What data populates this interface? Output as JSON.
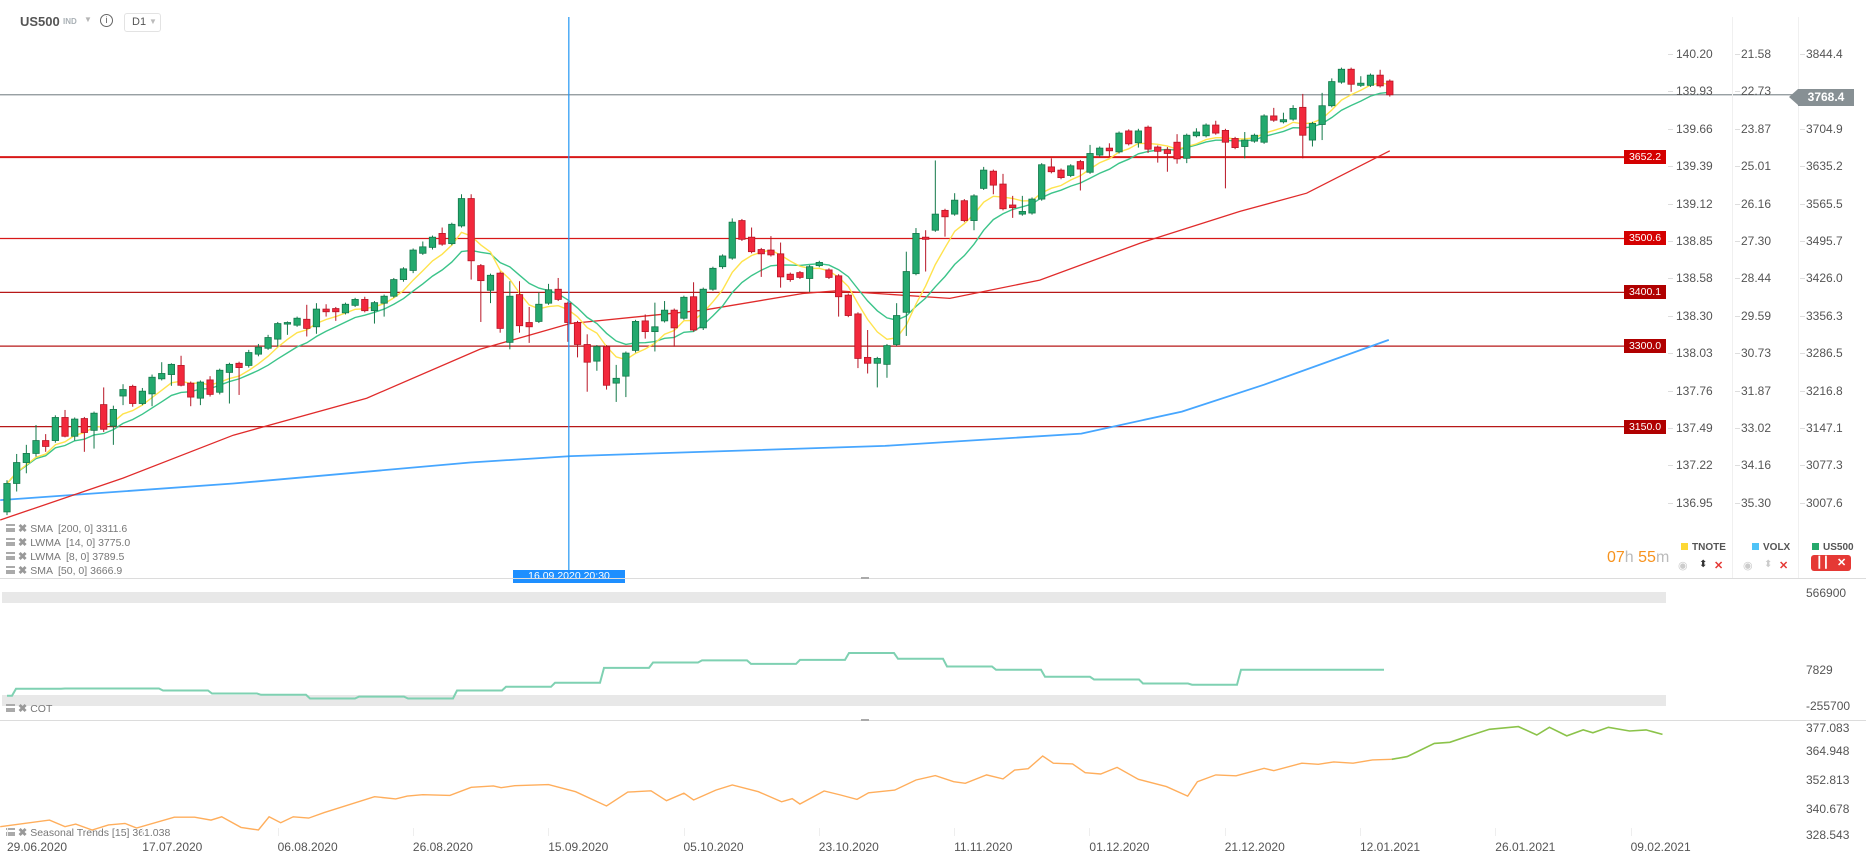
{
  "header": {
    "symbol": "US500",
    "type": "IND",
    "info_icon": "info-icon",
    "timeframe": "D1"
  },
  "axes": {
    "tnote": [
      "140.20",
      "139.93",
      "139.66",
      "139.39",
      "139.12",
      "138.85",
      "138.58",
      "138.30",
      "138.03",
      "137.76",
      "137.49",
      "137.22",
      "136.95"
    ],
    "volx": [
      "21.58",
      "22.73",
      "23.87",
      "25.01",
      "26.16",
      "27.30",
      "28.44",
      "29.59",
      "30.73",
      "31.87",
      "33.02",
      "34.16",
      "35.30"
    ],
    "us500": [
      "3844.4",
      "3768.4",
      "3704.9",
      "3635.2",
      "3565.5",
      "3495.7",
      "3426.0",
      "3356.3",
      "3286.5",
      "3216.8",
      "3147.1",
      "3077.3",
      "3007.6"
    ],
    "tnote_ghost_2": "139.93",
    "volx_ghost_2": "22.73"
  },
  "current_price": {
    "label": "3768.4",
    "value": 3768.4,
    "color": "#879094"
  },
  "levels": [
    {
      "label": "3652.2",
      "value": 3652.2,
      "color": "#d40000"
    },
    {
      "label": "3500.6",
      "value": 3500.6,
      "color": "#d40000"
    },
    {
      "label": "3400.1",
      "value": 3400.1,
      "color": "#b00000"
    },
    {
      "label": "3300.0",
      "value": 3300.0,
      "color": "#b00000"
    },
    {
      "label": "3150.0",
      "value": 3150.0,
      "color": "#b00000"
    }
  ],
  "indicators": [
    {
      "name": "SMA",
      "params": "[200,  0]",
      "value": "3311.6",
      "color": "#4aa8ff"
    },
    {
      "name": "LWMA",
      "params": "[14,  0]",
      "value": "3775.0",
      "color": "#3cc48a"
    },
    {
      "name": "LWMA",
      "params": "[8,  0]",
      "value": "3789.5",
      "color": "#ffe34d"
    },
    {
      "name": "SMA",
      "params": "[50,  0]",
      "value": "3666.9",
      "color": "#e02b2b"
    }
  ],
  "crosshair": {
    "label": "16.09.2020 20:30",
    "day_index": 58.1
  },
  "timer": {
    "hours": "07",
    "h": "h",
    "minutes": "55",
    "m": "m"
  },
  "series_legend": [
    {
      "name": "TNOTE",
      "color": "#fdd835"
    },
    {
      "name": "VOLX",
      "color": "#4fc3f7"
    },
    {
      "name": "US500",
      "color": "#26a96c"
    }
  ],
  "colors": {
    "up": "#23a96e",
    "down": "#f2283c",
    "up_border": "#13784a",
    "down_border": "#b81525",
    "crosshair": "#2196f3"
  },
  "cot": {
    "label": "COT",
    "axis": [
      "566900",
      "7829",
      "-255700"
    ],
    "axis_values": [
      566900,
      7829,
      -255700
    ],
    "weekly_values": [
      -181400,
      -130000,
      -128000,
      -128000,
      -143000,
      -165000,
      -174000,
      -201000,
      -187000,
      -201000,
      -143000,
      -116000,
      -87000,
      22000,
      61000,
      76000,
      51000,
      80000,
      130000,
      88000,
      32000,
      7829,
      -43000,
      -63000,
      -92000,
      -101000,
      7829,
      7829,
      7829
    ],
    "color": "#7fd1b2"
  },
  "seasonal": {
    "label": "Seasonal  Trends  [15]  361.038",
    "axis": [
      "377.083",
      "364.948",
      "352.813",
      "340.678",
      "328.543"
    ],
    "range": [
      328.543,
      377.083
    ],
    "forecast_from_day": 143.2,
    "color_hist": "#ffae5c",
    "color_forecast": "#8bc34a",
    "points": [
      [
        -0.7,
        332.3
      ],
      [
        4.4,
        335.3
      ],
      [
        6.0,
        332.3
      ],
      [
        7.1,
        333.5
      ],
      [
        8.8,
        330.8
      ],
      [
        10.5,
        333.1
      ],
      [
        12.2,
        333.8
      ],
      [
        13.4,
        331.7
      ],
      [
        17.3,
        336.6
      ],
      [
        19.4,
        336.6
      ],
      [
        21.1,
        335.3
      ],
      [
        22.2,
        336.8
      ],
      [
        24.2,
        332.0
      ],
      [
        26.0,
        330.8
      ],
      [
        27.1,
        336.8
      ],
      [
        28.3,
        334.1
      ],
      [
        29.6,
        336.8
      ],
      [
        31.2,
        336.2
      ],
      [
        32.8,
        338.7
      ],
      [
        38.0,
        345.9
      ],
      [
        40.2,
        344.9
      ],
      [
        41.4,
        346.2
      ],
      [
        43.0,
        346.8
      ],
      [
        45.8,
        346.5
      ],
      [
        48.0,
        350.2
      ],
      [
        50.3,
        350.8
      ],
      [
        51.1,
        350.0
      ],
      [
        52.5,
        350.9
      ],
      [
        56.0,
        351.4
      ],
      [
        58.8,
        348.2
      ],
      [
        62.0,
        341.7
      ],
      [
        64.2,
        348.0
      ],
      [
        66.6,
        348.6
      ],
      [
        68.2,
        344.1
      ],
      [
        70.0,
        347.5
      ],
      [
        71.0,
        344.4
      ],
      [
        73.3,
        348.9
      ],
      [
        75.0,
        351.2
      ],
      [
        77.7,
        348.2
      ],
      [
        80.1,
        343.6
      ],
      [
        81.2,
        345.0
      ],
      [
        82.0,
        342.6
      ],
      [
        84.5,
        348.5
      ],
      [
        86.2,
        346.7
      ],
      [
        87.9,
        344.7
      ],
      [
        89.1,
        347.7
      ],
      [
        91.8,
        348.9
      ],
      [
        94.0,
        353.5
      ],
      [
        96.0,
        355.5
      ],
      [
        97.9,
        352.7
      ],
      [
        99.1,
        352.0
      ],
      [
        101.3,
        355.8
      ],
      [
        103.0,
        354.0
      ],
      [
        104.2,
        358.0
      ],
      [
        105.6,
        358.6
      ],
      [
        107.1,
        364.4
      ],
      [
        108.2,
        361.1
      ],
      [
        110.2,
        360.8
      ],
      [
        111.5,
        356.8
      ],
      [
        113.1,
        356.2
      ],
      [
        114.8,
        359.2
      ],
      [
        117.0,
        353.8
      ],
      [
        119.9,
        350.5
      ],
      [
        122.1,
        346.2
      ],
      [
        123.1,
        352.7
      ],
      [
        125.0,
        355.8
      ],
      [
        127.1,
        355.4
      ],
      [
        130.0,
        358.8
      ],
      [
        131.0,
        357.7
      ],
      [
        133.9,
        361.1
      ],
      [
        135.6,
        360.6
      ],
      [
        137.2,
        361.7
      ],
      [
        139.2,
        361.1
      ],
      [
        141.2,
        362.6
      ],
      [
        143.2,
        362.9
      ],
      [
        144.8,
        364.1
      ],
      [
        147.6,
        370.1
      ],
      [
        149.2,
        370.6
      ],
      [
        150.9,
        373.1
      ],
      [
        153.3,
        376.5
      ],
      [
        156.3,
        377.7
      ],
      [
        158.2,
        373.9
      ],
      [
        159.5,
        377.4
      ],
      [
        161.3,
        373.5
      ],
      [
        163.0,
        376.2
      ],
      [
        164.0,
        374.9
      ],
      [
        165.6,
        377.4
      ],
      [
        167.8,
        375.7
      ],
      [
        169.5,
        376.2
      ],
      [
        171.2,
        374.2
      ]
    ]
  },
  "x_axis": {
    "labels": [
      "29.06.2020",
      "17.07.2020",
      "06.08.2020",
      "26.08.2020",
      "15.09.2020",
      "05.10.2020",
      "23.10.2020",
      "11.11.2020",
      "01.12.2020",
      "21.12.2020",
      "12.01.2021",
      "26.01.2021",
      "09.02.2021"
    ]
  },
  "chart_data": {
    "type": "candlestick",
    "title": "US500 D1",
    "ylim": [
      3007.6,
      3844.4
    ],
    "candle_fields": [
      "open",
      "close",
      "high",
      "low"
    ],
    "candles": [
      [
        2991,
        3044,
        3050,
        2985
      ],
      [
        3044,
        3083,
        3099,
        3029
      ],
      [
        3083,
        3100,
        3116,
        3063
      ],
      [
        3100,
        3124,
        3153,
        3094
      ],
      [
        3124,
        3113,
        3136,
        3103
      ],
      [
        3124,
        3167,
        3171,
        3120
      ],
      [
        3167,
        3132,
        3181,
        3130
      ],
      [
        3132,
        3164,
        3167,
        3124
      ],
      [
        3165,
        3139,
        3168,
        3103
      ],
      [
        3143,
        3175,
        3178,
        3109
      ],
      [
        3191,
        3145,
        3223,
        3140
      ],
      [
        3151,
        3182,
        3189,
        3116
      ],
      [
        3207,
        3219,
        3229,
        3190
      ],
      [
        3225,
        3193,
        3228,
        3187
      ],
      [
        3193,
        3216,
        3222,
        3190
      ],
      [
        3211,
        3242,
        3247,
        3188
      ],
      [
        3239,
        3249,
        3270,
        3236
      ],
      [
        3247,
        3266,
        3268,
        3226
      ],
      [
        3264,
        3227,
        3282,
        3225
      ],
      [
        3231,
        3205,
        3234,
        3188
      ],
      [
        3203,
        3233,
        3236,
        3190
      ],
      [
        3237,
        3210,
        3244,
        3206
      ],
      [
        3214,
        3255,
        3258,
        3210
      ],
      [
        3251,
        3266,
        3269,
        3193
      ],
      [
        3268,
        3260,
        3271,
        3209
      ],
      [
        3264,
        3288,
        3293,
        3260
      ],
      [
        3285,
        3298,
        3304,
        3281
      ],
      [
        3296,
        3316,
        3321,
        3293
      ],
      [
        3313,
        3342,
        3345,
        3299
      ],
      [
        3341,
        3344,
        3346,
        3321
      ],
      [
        3339,
        3352,
        3355,
        3336
      ],
      [
        3350,
        3333,
        3377,
        3318
      ],
      [
        3336,
        3369,
        3380,
        3323
      ],
      [
        3369,
        3364,
        3378,
        3355
      ],
      [
        3370,
        3364,
        3373,
        3347
      ],
      [
        3362,
        3378,
        3381,
        3359
      ],
      [
        3376,
        3387,
        3390,
        3373
      ],
      [
        3387,
        3366,
        3392,
        3363
      ],
      [
        3366,
        3381,
        3384,
        3342
      ],
      [
        3380,
        3393,
        3396,
        3355
      ],
      [
        3393,
        3424,
        3427,
        3390
      ],
      [
        3424,
        3444,
        3447,
        3420
      ],
      [
        3441,
        3479,
        3482,
        3436
      ],
      [
        3473,
        3485,
        3495,
        3470
      ],
      [
        3484,
        3503,
        3506,
        3480
      ],
      [
        3510,
        3490,
        3521,
        3487
      ],
      [
        3491,
        3527,
        3530,
        3488
      ],
      [
        3524,
        3575,
        3583,
        3521
      ],
      [
        3575,
        3459,
        3583,
        3424
      ],
      [
        3450,
        3422,
        3453,
        3345
      ],
      [
        3404,
        3432,
        3435,
        3380
      ],
      [
        3436,
        3333,
        3439,
        3325
      ],
      [
        3307,
        3393,
        3421,
        3294
      ],
      [
        3396,
        3338,
        3421,
        3325
      ],
      [
        3344,
        3336,
        3373,
        3306
      ],
      [
        3346,
        3378,
        3400,
        3343
      ],
      [
        3380,
        3405,
        3416,
        3377
      ],
      [
        3406,
        3387,
        3427,
        3384
      ],
      [
        3380,
        3344,
        3383,
        3308
      ],
      [
        3344,
        3303,
        3347,
        3279
      ],
      [
        3303,
        3270,
        3322,
        3215
      ],
      [
        3272,
        3299,
        3302,
        3254
      ],
      [
        3299,
        3227,
        3302,
        3219
      ],
      [
        3231,
        3240,
        3265,
        3196
      ],
      [
        3244,
        3287,
        3290,
        3205
      ],
      [
        3292,
        3346,
        3349,
        3288
      ],
      [
        3347,
        3327,
        3359,
        3314
      ],
      [
        3327,
        3336,
        3381,
        3290
      ],
      [
        3347,
        3367,
        3384,
        3344
      ],
      [
        3367,
        3334,
        3370,
        3299
      ],
      [
        3352,
        3391,
        3394,
        3349
      ],
      [
        3392,
        3330,
        3419,
        3327
      ],
      [
        3334,
        3406,
        3409,
        3330
      ],
      [
        3406,
        3445,
        3448,
        3403
      ],
      [
        3448,
        3468,
        3471,
        3444
      ],
      [
        3464,
        3531,
        3538,
        3461
      ],
      [
        3534,
        3499,
        3537,
        3496
      ],
      [
        3503,
        3476,
        3521,
        3473
      ],
      [
        3480,
        3472,
        3483,
        3429
      ],
      [
        3479,
        3470,
        3505,
        3467
      ],
      [
        3472,
        3429,
        3493,
        3409
      ],
      [
        3434,
        3424,
        3437,
        3420
      ],
      [
        3437,
        3428,
        3440,
        3425
      ],
      [
        3426,
        3448,
        3451,
        3401
      ],
      [
        3450,
        3456,
        3459,
        3447
      ],
      [
        3442,
        3428,
        3445,
        3425
      ],
      [
        3431,
        3392,
        3434,
        3355
      ],
      [
        3395,
        3357,
        3398,
        3354
      ],
      [
        3360,
        3277,
        3363,
        3259
      ],
      [
        3279,
        3268,
        3330,
        3249
      ],
      [
        3268,
        3277,
        3280,
        3223
      ],
      [
        3266,
        3301,
        3304,
        3241
      ],
      [
        3303,
        3357,
        3380,
        3300
      ],
      [
        3363,
        3439,
        3476,
        3319
      ],
      [
        3435,
        3510,
        3520,
        3432
      ],
      [
        3503,
        3499,
        3516,
        3439
      ],
      [
        3516,
        3546,
        3646,
        3513
      ],
      [
        3553,
        3541,
        3556,
        3504
      ],
      [
        3546,
        3572,
        3585,
        3543
      ],
      [
        3571,
        3534,
        3574,
        3531
      ],
      [
        3534,
        3580,
        3583,
        3516
      ],
      [
        3594,
        3628,
        3634,
        3591
      ],
      [
        3626,
        3600,
        3629,
        3583
      ],
      [
        3602,
        3556,
        3621,
        3553
      ],
      [
        3563,
        3558,
        3580,
        3539
      ],
      [
        3546,
        3551,
        3580,
        3543
      ],
      [
        3548,
        3574,
        3577,
        3545
      ],
      [
        3574,
        3638,
        3641,
        3571
      ],
      [
        3634,
        3625,
        3650,
        3622
      ],
      [
        3628,
        3614,
        3631,
        3611
      ],
      [
        3618,
        3636,
        3639,
        3615
      ],
      [
        3644,
        3630,
        3647,
        3590
      ],
      [
        3624,
        3659,
        3675,
        3621
      ],
      [
        3656,
        3669,
        3672,
        3653
      ],
      [
        3669,
        3664,
        3678,
        3653
      ],
      [
        3662,
        3697,
        3700,
        3659
      ],
      [
        3701,
        3677,
        3704,
        3674
      ],
      [
        3679,
        3701,
        3705,
        3670
      ],
      [
        3708,
        3667,
        3711,
        3660
      ],
      [
        3671,
        3663,
        3674,
        3642
      ],
      [
        3666,
        3659,
        3671,
        3625
      ],
      [
        3680,
        3649,
        3695,
        3640
      ],
      [
        3650,
        3693,
        3696,
        3641
      ],
      [
        3692,
        3699,
        3706,
        3689
      ],
      [
        3692,
        3712,
        3715,
        3689
      ],
      [
        3712,
        3697,
        3720,
        3694
      ],
      [
        3702,
        3680,
        3705,
        3594
      ],
      [
        3687,
        3670,
        3690,
        3667
      ],
      [
        3672,
        3684,
        3699,
        3650
      ],
      [
        3682,
        3693,
        3696,
        3679
      ],
      [
        3680,
        3729,
        3732,
        3677
      ],
      [
        3729,
        3721,
        3744,
        3718
      ],
      [
        3718,
        3722,
        3735,
        3715
      ],
      [
        3723,
        3743,
        3749,
        3720
      ],
      [
        3745,
        3693,
        3770,
        3650
      ],
      [
        3684,
        3715,
        3718,
        3672
      ],
      [
        3713,
        3748,
        3772,
        3684
      ],
      [
        3748,
        3793,
        3799,
        3745
      ],
      [
        3792,
        3816,
        3819,
        3789
      ],
      [
        3816,
        3788,
        3819,
        3774
      ],
      [
        3786,
        3790,
        3803,
        3783
      ],
      [
        3786,
        3805,
        3808,
        3783
      ],
      [
        3805,
        3785,
        3815,
        3782
      ],
      [
        3794,
        3768.4,
        3797,
        3765
      ]
    ],
    "sma50_anchors": [
      [
        -0.7,
        2976
      ],
      [
        2.4,
        2995
      ],
      [
        12,
        3054
      ],
      [
        23.4,
        3134
      ],
      [
        37.2,
        3203
      ],
      [
        48.9,
        3294
      ],
      [
        58.2,
        3342
      ],
      [
        72,
        3367
      ],
      [
        82.3,
        3398
      ],
      [
        85.8,
        3403
      ],
      [
        97.5,
        3389
      ],
      [
        106.8,
        3423
      ],
      [
        117.2,
        3492
      ],
      [
        127.5,
        3551
      ],
      [
        134.4,
        3585
      ],
      [
        143,
        3664
      ]
    ],
    "sma200_anchors": [
      [
        -0.7,
        3013
      ],
      [
        23.4,
        3044
      ],
      [
        47.9,
        3083
      ],
      [
        58.3,
        3095
      ],
      [
        90.8,
        3114
      ],
      [
        111.1,
        3137
      ],
      [
        121.5,
        3178
      ],
      [
        130,
        3228
      ],
      [
        142.9,
        3311.6
      ]
    ]
  }
}
